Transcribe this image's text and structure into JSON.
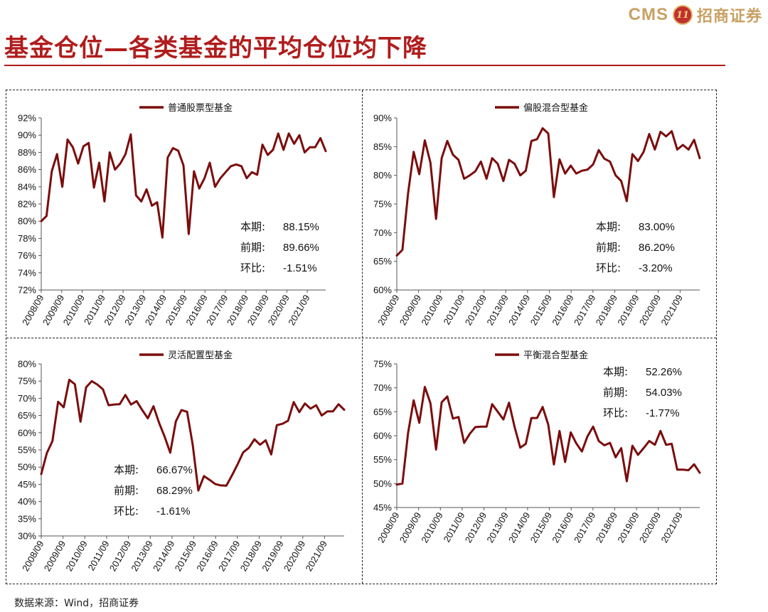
{
  "header": {
    "logo_text": "CMS",
    "logo_badge_text": "11",
    "logo_name": "招商证券",
    "title": "基金仓位—各类基金的平均仓位均下降"
  },
  "source": "数据来源：Wind，招商证券",
  "colors": {
    "line": "#7b0d0d",
    "title": "#b01c1c",
    "logo": "#c9a063"
  },
  "chart_data": [
    {
      "type": "line",
      "series": [
        {
          "name": "普通股票型基金",
          "values": [
            80.0,
            80.6,
            85.8,
            87.8,
            84.0,
            89.5,
            88.6,
            86.7,
            88.7,
            89.1,
            83.9,
            86.8,
            82.3,
            88.0,
            86.0,
            86.7,
            87.8,
            90.1,
            83.0,
            82.3,
            83.7,
            81.8,
            82.2,
            78.1,
            87.4,
            88.5,
            88.2,
            86.5,
            78.5,
            85.8,
            83.8,
            85.0,
            86.8,
            84.0,
            85.0,
            85.7,
            86.4,
            86.6,
            86.4,
            85.0,
            85.7,
            85.4,
            88.9,
            87.7,
            88.3,
            90.2,
            88.3,
            90.2,
            89.0,
            90.0,
            88.0,
            88.6,
            88.6,
            89.66,
            88.15
          ]
        }
      ],
      "x_labels": [
        "2008/09",
        "2009/09",
        "2010/09",
        "2011/09",
        "2012/09",
        "2013/09",
        "2014/09",
        "2015/09",
        "2016/09",
        "2017/09",
        "2018/09",
        "2019/09",
        "2020/09",
        "2021/09"
      ],
      "ylim": [
        72,
        92
      ],
      "ystep": 2,
      "stats": [
        {
          "label": "本期:",
          "value": "88.15%"
        },
        {
          "label": "前期:",
          "value": "89.66%"
        },
        {
          "label": "环比:",
          "value": "-1.51%"
        }
      ],
      "stats_placement": "lower-right",
      "legend_placement": "top-center"
    },
    {
      "type": "line",
      "series": [
        {
          "name": "偏股混合型基金",
          "values": [
            66.0,
            67.0,
            76.8,
            84.1,
            80.2,
            86.1,
            82.2,
            72.4,
            83.0,
            86.0,
            83.6,
            82.7,
            79.4,
            80.0,
            80.7,
            82.4,
            79.4,
            83.0,
            82.0,
            79.0,
            82.7,
            82.0,
            80.0,
            80.8,
            86.0,
            86.3,
            88.2,
            87.3,
            76.2,
            82.8,
            80.3,
            81.7,
            80.3,
            80.8,
            81.0,
            81.9,
            84.4,
            82.9,
            82.4,
            80.0,
            79.0,
            75.5,
            83.7,
            82.5,
            84.1,
            87.2,
            84.5,
            87.6,
            86.8,
            87.7,
            84.5,
            85.3,
            84.5,
            86.2,
            83.0
          ]
        }
      ],
      "x_labels": [
        "2008/09",
        "2009/09",
        "2010/09",
        "2011/09",
        "2012/09",
        "2013/09",
        "2014/09",
        "2015/09",
        "2016/09",
        "2017/09",
        "2018/09",
        "2019/09",
        "2020/09",
        "2021/09"
      ],
      "ylim": [
        60,
        90
      ],
      "ystep": 5,
      "stats": [
        {
          "label": "本期:",
          "value": "83.00%"
        },
        {
          "label": "前期:",
          "value": "86.20%"
        },
        {
          "label": "环比:",
          "value": "-3.20%"
        }
      ],
      "stats_placement": "lower-right",
      "legend_placement": "top-center"
    },
    {
      "type": "line",
      "series": [
        {
          "name": "灵活配置型基金",
          "values": [
            48.0,
            54.1,
            57.6,
            69.0,
            67.4,
            75.4,
            74.1,
            63.2,
            73.2,
            75.0,
            74.0,
            72.6,
            68.0,
            68.2,
            68.3,
            71.0,
            68.2,
            69.2,
            66.6,
            64.2,
            67.7,
            62.9,
            58.8,
            54.2,
            63.3,
            66.6,
            66.1,
            56.5,
            43.2,
            47.4,
            46.3,
            45.1,
            44.7,
            44.6,
            47.6,
            50.8,
            54.3,
            55.6,
            58.1,
            56.5,
            57.8,
            53.7,
            62.2,
            62.6,
            63.5,
            68.9,
            66.0,
            68.5,
            67.0,
            68.0,
            65.0,
            66.2,
            66.2,
            68.29,
            66.67
          ]
        }
      ],
      "x_labels": [
        "2008/09",
        "2009/09",
        "2010/09",
        "2011/09",
        "2012/09",
        "2013/09",
        "2014/09",
        "2015/09",
        "2016/09",
        "2017/09",
        "2018/09",
        "2019/09",
        "2020/09",
        "2021/09"
      ],
      "ylim": [
        30,
        80
      ],
      "ystep": 5,
      "stats": [
        {
          "label": "本期:",
          "value": "66.67%"
        },
        {
          "label": "前期:",
          "value": "68.29%"
        },
        {
          "label": "环比:",
          "value": "-1.61%"
        }
      ],
      "stats_placement": "lower-middle",
      "legend_placement": "top-center"
    },
    {
      "type": "line",
      "series": [
        {
          "name": "平衡混合型基金",
          "values": [
            49.8,
            50.0,
            60.5,
            67.4,
            62.7,
            70.2,
            66.8,
            57.1,
            67.0,
            68.2,
            63.6,
            63.9,
            58.5,
            60.4,
            61.8,
            61.9,
            61.9,
            66.6,
            65.0,
            63.4,
            66.9,
            61.8,
            57.5,
            58.3,
            63.7,
            63.7,
            66.0,
            62.3,
            54.0,
            61.0,
            54.5,
            60.7,
            58.4,
            56.7,
            59.9,
            61.9,
            58.9,
            58.0,
            58.5,
            55.5,
            57.4,
            50.5,
            57.9,
            56.0,
            57.4,
            58.9,
            58.1,
            61.0,
            58.1,
            58.3,
            52.9,
            52.9,
            52.8,
            54.03,
            52.26
          ]
        }
      ],
      "x_labels": [
        "2008/09",
        "2009/09",
        "2010/09",
        "2011/09",
        "2012/09",
        "2013/09",
        "2014/09",
        "2015/09",
        "2016/09",
        "2017/09",
        "2018/09",
        "2019/09",
        "2020/09",
        "2021/09"
      ],
      "ylim": [
        45,
        75
      ],
      "ystep": 5,
      "stats": [
        {
          "label": "本期:",
          "value": "52.26%"
        },
        {
          "label": "前期:",
          "value": "54.03%"
        },
        {
          "label": "环比:",
          "value": "-1.77%"
        }
      ],
      "stats_placement": "upper-right",
      "legend_placement": "top-center"
    }
  ]
}
